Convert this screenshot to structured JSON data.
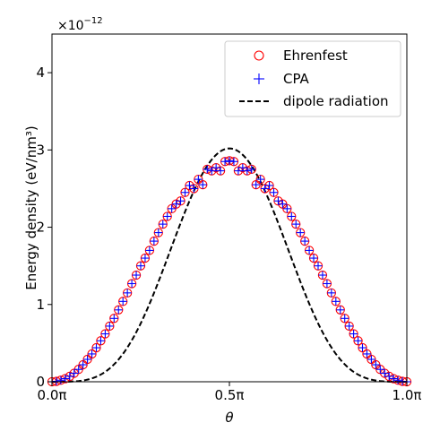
{
  "chart_data": {
    "type": "scatter",
    "xlabel": "θ",
    "ylabel": "Energy density (eV/nm³)",
    "offset_text": "×10",
    "offset_exponent": "−12",
    "xlim": [
      0.0,
      1.0
    ],
    "ylim": [
      0,
      4.5
    ],
    "xticks": [
      {
        "value": 0.0,
        "label": "0.0π"
      },
      {
        "value": 0.5,
        "label": "0.5π"
      },
      {
        "value": 1.0,
        "label": "1.0π"
      }
    ],
    "yticks": [
      {
        "value": 0,
        "label": "0"
      },
      {
        "value": 1,
        "label": "1"
      },
      {
        "value": 2,
        "label": "2"
      },
      {
        "value": 3,
        "label": "3"
      },
      {
        "value": 4,
        "label": "4"
      }
    ],
    "legend_position": "top-right",
    "x": [
      0.0,
      0.0125,
      0.025,
      0.0375,
      0.05,
      0.0625,
      0.075,
      0.0875,
      0.1,
      0.1125,
      0.125,
      0.1375,
      0.15,
      0.1625,
      0.175,
      0.1875,
      0.2,
      0.2125,
      0.225,
      0.2375,
      0.25,
      0.2625,
      0.275,
      0.2875,
      0.3,
      0.3125,
      0.325,
      0.3375,
      0.35,
      0.3625,
      0.375,
      0.3875,
      0.4,
      0.4125,
      0.425,
      0.4375,
      0.45,
      0.4625,
      0.475,
      0.4875,
      0.5,
      0.5125,
      0.525,
      0.5375,
      0.55,
      0.5625,
      0.575,
      0.5875,
      0.6,
      0.6125,
      0.625,
      0.6375,
      0.65,
      0.6625,
      0.675,
      0.6875,
      0.7,
      0.7125,
      0.725,
      0.7375,
      0.75,
      0.7625,
      0.775,
      0.7875,
      0.8,
      0.8125,
      0.825,
      0.8375,
      0.85,
      0.8625,
      0.875,
      0.8875,
      0.9,
      0.9125,
      0.925,
      0.9375,
      0.95,
      0.9625,
      0.975,
      0.9875,
      1.0
    ],
    "series": [
      {
        "name": "Ehrenfest",
        "marker": "circle-open",
        "color": "#ff0000",
        "values": [
          0.0,
          0.005,
          0.02,
          0.04,
          0.07,
          0.11,
          0.16,
          0.22,
          0.29,
          0.36,
          0.44,
          0.53,
          0.62,
          0.72,
          0.82,
          0.93,
          1.04,
          1.15,
          1.27,
          1.38,
          1.5,
          1.6,
          1.7,
          1.82,
          1.93,
          2.04,
          2.14,
          2.24,
          2.3,
          2.34,
          2.45,
          2.54,
          2.5,
          2.62,
          2.55,
          2.75,
          2.73,
          2.77,
          2.73,
          2.85,
          2.86,
          2.85,
          2.73,
          2.77,
          2.73,
          2.75,
          2.55,
          2.62,
          2.5,
          2.54,
          2.45,
          2.34,
          2.3,
          2.24,
          2.14,
          2.04,
          1.93,
          1.82,
          1.7,
          1.6,
          1.5,
          1.38,
          1.27,
          1.15,
          1.04,
          0.93,
          0.82,
          0.72,
          0.62,
          0.53,
          0.44,
          0.36,
          0.29,
          0.22,
          0.16,
          0.11,
          0.07,
          0.04,
          0.02,
          0.005,
          0.0
        ]
      },
      {
        "name": "CPA",
        "marker": "plus",
        "color": "#0000ff",
        "values": [
          0.0,
          0.005,
          0.02,
          0.04,
          0.07,
          0.11,
          0.16,
          0.22,
          0.29,
          0.36,
          0.44,
          0.53,
          0.62,
          0.72,
          0.82,
          0.93,
          1.04,
          1.15,
          1.27,
          1.38,
          1.5,
          1.6,
          1.7,
          1.82,
          1.93,
          2.04,
          2.14,
          2.24,
          2.3,
          2.34,
          2.45,
          2.54,
          2.5,
          2.62,
          2.55,
          2.75,
          2.73,
          2.77,
          2.73,
          2.85,
          2.86,
          2.85,
          2.73,
          2.77,
          2.73,
          2.75,
          2.55,
          2.62,
          2.5,
          2.54,
          2.45,
          2.34,
          2.3,
          2.24,
          2.14,
          2.04,
          1.93,
          1.82,
          1.7,
          1.6,
          1.5,
          1.38,
          1.27,
          1.15,
          1.04,
          0.93,
          0.82,
          0.72,
          0.62,
          0.53,
          0.44,
          0.36,
          0.29,
          0.22,
          0.16,
          0.11,
          0.07,
          0.04,
          0.02,
          0.005,
          0.0
        ]
      },
      {
        "name": "dipole radiation",
        "style": "dashed-line",
        "color": "#000000",
        "peak": 3.02,
        "form": "peak*sin^4(πx)"
      }
    ]
  }
}
